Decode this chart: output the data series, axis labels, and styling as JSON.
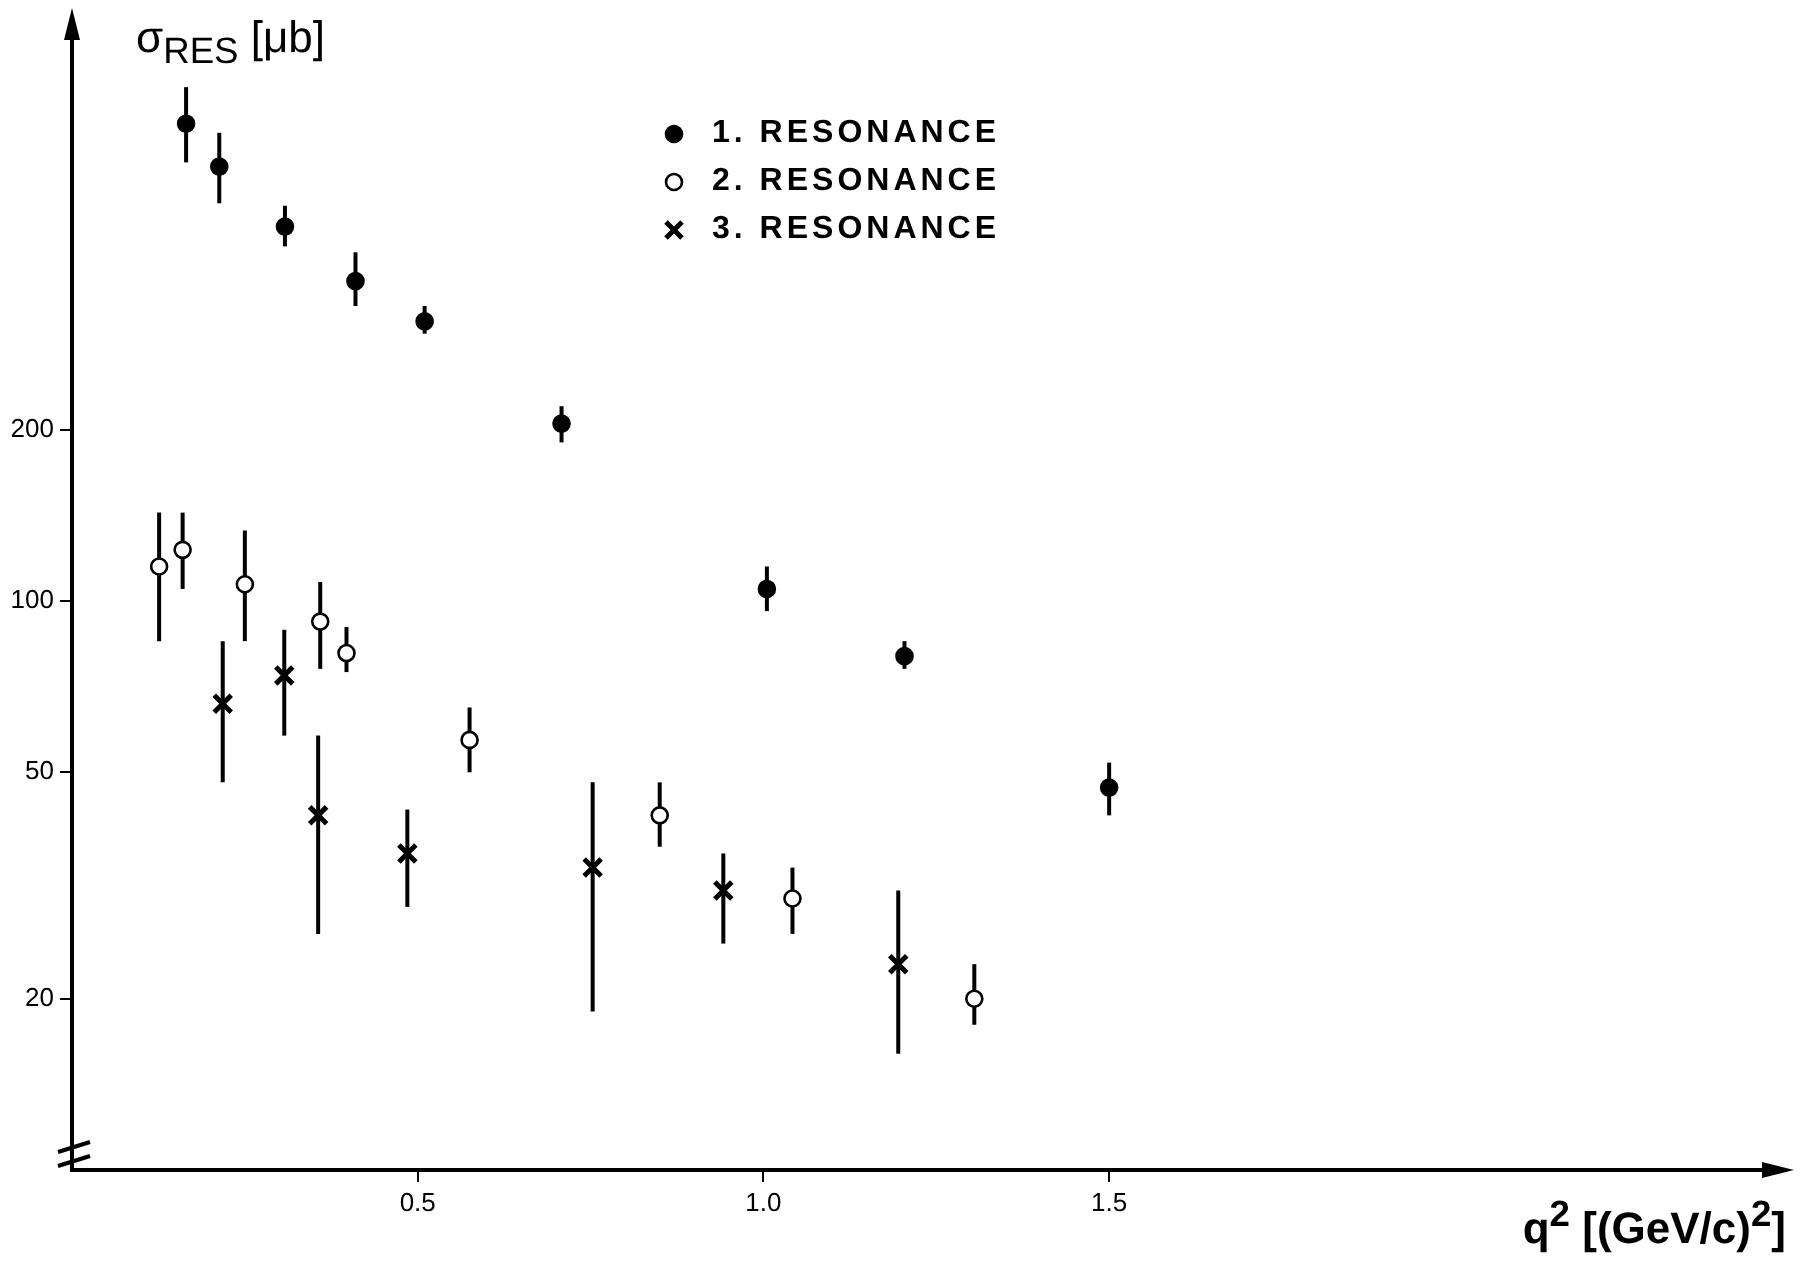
{
  "chart_data": {
    "type": "scatter",
    "ylabel": "σ$_{RES}$ [μb]",
    "xlabel": "q$^{2}$ [(GeV/c)$^{2}$]",
    "xlim": [
      0,
      2.45
    ],
    "xticks": [
      0.5,
      {
        "value": 1,
        "label": "1.0"
      },
      1.5
    ],
    "ylim": [
      10,
      1000
    ],
    "yticks": [
      20,
      50,
      100,
      200
    ],
    "log": "y",
    "grid": false,
    "legend": "top",
    "series": [
      {
        "name": "1. RESONANCE",
        "color": "#000000",
        "marker": "circle",
        "x": [
          0.165,
          0.213,
          0.308,
          0.41,
          0.51,
          0.708,
          1.005,
          1.204,
          1.5
        ],
        "values": [
          690,
          580,
          455,
          365,
          310,
          205,
          105,
          80,
          47
        ],
        "errors": [
          [
            590,
            800
          ],
          [
            500,
            665
          ],
          [
            420,
            495
          ],
          [
            330,
            410
          ],
          [
            295,
            330
          ],
          [
            190,
            220
          ],
          [
            96,
            115
          ],
          [
            76,
            85
          ],
          [
            42,
            52
          ]
        ]
      },
      {
        "name": "2. RESONANCE",
        "color": "#ffffff",
        "marker": "circle",
        "x": [
          0.126,
          0.16,
          0.25,
          0.359,
          0.397,
          0.575,
          0.85,
          1.042,
          1.305
        ],
        "values": [
          115,
          123,
          107,
          92,
          81,
          57,
          42,
          30,
          20
        ],
        "errors": [
          [
            85,
            143
          ],
          [
            105,
            143
          ],
          [
            85,
            133
          ],
          [
            76,
            108
          ],
          [
            75,
            90
          ],
          [
            50,
            65
          ],
          [
            37,
            48
          ],
          [
            26,
            34
          ],
          [
            18,
            23
          ]
        ]
      },
      {
        "name": "3. RESONANCE",
        "color": "#000000",
        "marker": "cross",
        "x": [
          0.218,
          0.307,
          0.356,
          0.485,
          0.753,
          0.942,
          1.195
        ],
        "values": [
          66,
          74,
          42,
          36,
          34,
          31,
          23
        ],
        "errors": [
          [
            48,
            85
          ],
          [
            58,
            89
          ],
          [
            26,
            58
          ],
          [
            29,
            43
          ],
          [
            19,
            48
          ],
          [
            25,
            36
          ],
          [
            16,
            31
          ]
        ]
      }
    ]
  }
}
